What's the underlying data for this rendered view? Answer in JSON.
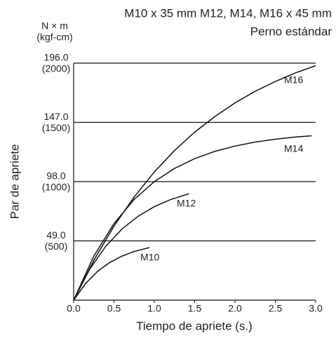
{
  "chart_data": {
    "type": "line",
    "title": "M10 x 35 mm M12, M14, M16 x 45 mm",
    "subtitle": "Perno estándar",
    "y_unit": "N × m",
    "y_unit_secondary": "(kgf-cm)",
    "y_label": "Par de apriete",
    "x_label": "Tiempo de apriete (s.)",
    "xlim": [
      0,
      3
    ],
    "ylim": [
      0,
      196
    ],
    "xticks": [
      {
        "value": 0,
        "label": "0.0"
      },
      {
        "value": 0.5,
        "label": "0.5"
      },
      {
        "value": 1,
        "label": "1.0"
      },
      {
        "value": 1.5,
        "label": "1.5"
      },
      {
        "value": 2,
        "label": "2.0"
      },
      {
        "value": 2.5,
        "label": "2.5"
      },
      {
        "value": 3,
        "label": "3.0"
      }
    ],
    "yticks": [
      {
        "value": 49,
        "label": "49.0"
      },
      {
        "value": 98,
        "label": "98.0"
      },
      {
        "value": 147,
        "label": "147.0"
      },
      {
        "value": 196,
        "label": "196.0"
      }
    ],
    "ytick_secondary_labels": [
      "(500)",
      "(1000)",
      "(1500)",
      "(2000)"
    ],
    "grid": true,
    "series": [
      {
        "name": "M16",
        "color": "#111111",
        "x": [
          0,
          0.25,
          0.5,
          0.75,
          1,
          1.25,
          1.5,
          1.75,
          2,
          2.25,
          2.5,
          2.75,
          3
        ],
        "values": [
          0,
          32.9,
          61.2,
          85.3,
          106,
          123.7,
          138.9,
          151.8,
          163.1,
          172.7,
          180.8,
          187.9,
          193.9
        ]
      },
      {
        "name": "M14",
        "color": "#111111",
        "x": [
          0,
          0.25,
          0.5,
          0.75,
          1,
          1.25,
          1.5,
          1.75,
          2,
          2.25,
          2.5,
          2.75,
          2.95
        ],
        "values": [
          0,
          36.4,
          63.3,
          83.3,
          98,
          108.9,
          117,
          123,
          127.4,
          130.7,
          133.1,
          134.9,
          135.9
        ]
      },
      {
        "name": "M12",
        "color": "#111111",
        "x": [
          0,
          0.2,
          0.4,
          0.6,
          0.8,
          1,
          1.2,
          1.43
        ],
        "values": [
          0,
          25.7,
          44.7,
          58.9,
          69.4,
          77.3,
          83.1,
          88
        ]
      },
      {
        "name": "M10",
        "color": "#111111",
        "x": [
          0,
          0.15,
          0.3,
          0.45,
          0.6,
          0.75,
          0.94
        ],
        "values": [
          0,
          13.9,
          24,
          31.2,
          36.4,
          40.2,
          43.5
        ]
      }
    ]
  }
}
